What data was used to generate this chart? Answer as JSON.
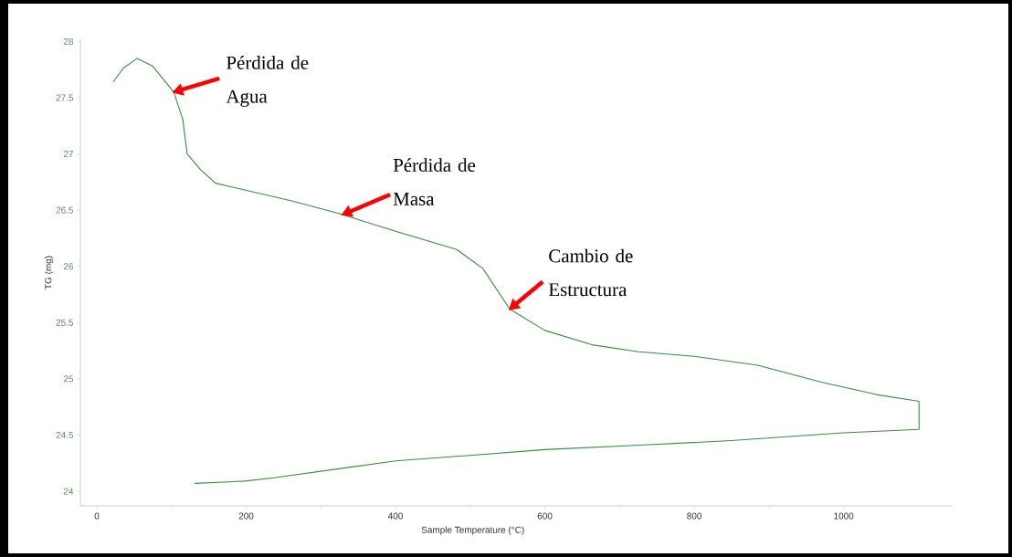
{
  "chart_data": {
    "type": "line",
    "xlabel": "Sample Temperature (°C)",
    "ylabel": "TG (mg)",
    "x": [
      22,
      35,
      54,
      75,
      103,
      115,
      121,
      139,
      159,
      198,
      262,
      324,
      396,
      482,
      517,
      553,
      600,
      665,
      726,
      800,
      885,
      970,
      1044,
      1101,
      1101,
      1000,
      849,
      727,
      600,
      482,
      400,
      335,
      237,
      198,
      131
    ],
    "values": [
      27.64,
      27.76,
      27.85,
      27.78,
      27.55,
      27.31,
      27.0,
      26.86,
      26.74,
      26.68,
      26.58,
      26.47,
      26.32,
      26.15,
      25.98,
      25.62,
      25.43,
      25.3,
      25.24,
      25.2,
      25.12,
      24.97,
      24.86,
      24.8,
      24.55,
      24.52,
      24.45,
      24.41,
      24.37,
      24.31,
      24.27,
      24.21,
      24.12,
      24.09,
      24.07
    ],
    "color": "#3c8c3c",
    "marker": "none",
    "line_style": "solid",
    "xlim": [
      -22,
      1146
    ],
    "ylim": [
      23.87,
      28.02
    ],
    "xticks": [
      0,
      200,
      400,
      600,
      800,
      1000
    ],
    "yticks": [
      24,
      24.5,
      25,
      25.5,
      26,
      26.5,
      27,
      27.5,
      28
    ],
    "annotations": [
      {
        "text": "Pérdida de Agua",
        "x": 103,
        "y": 27.55
      },
      {
        "text": "Pérdida de Masa",
        "x": 329,
        "y": 26.46
      },
      {
        "text": "Cambio de Estructura",
        "x": 553,
        "y": 25.62
      }
    ]
  }
}
